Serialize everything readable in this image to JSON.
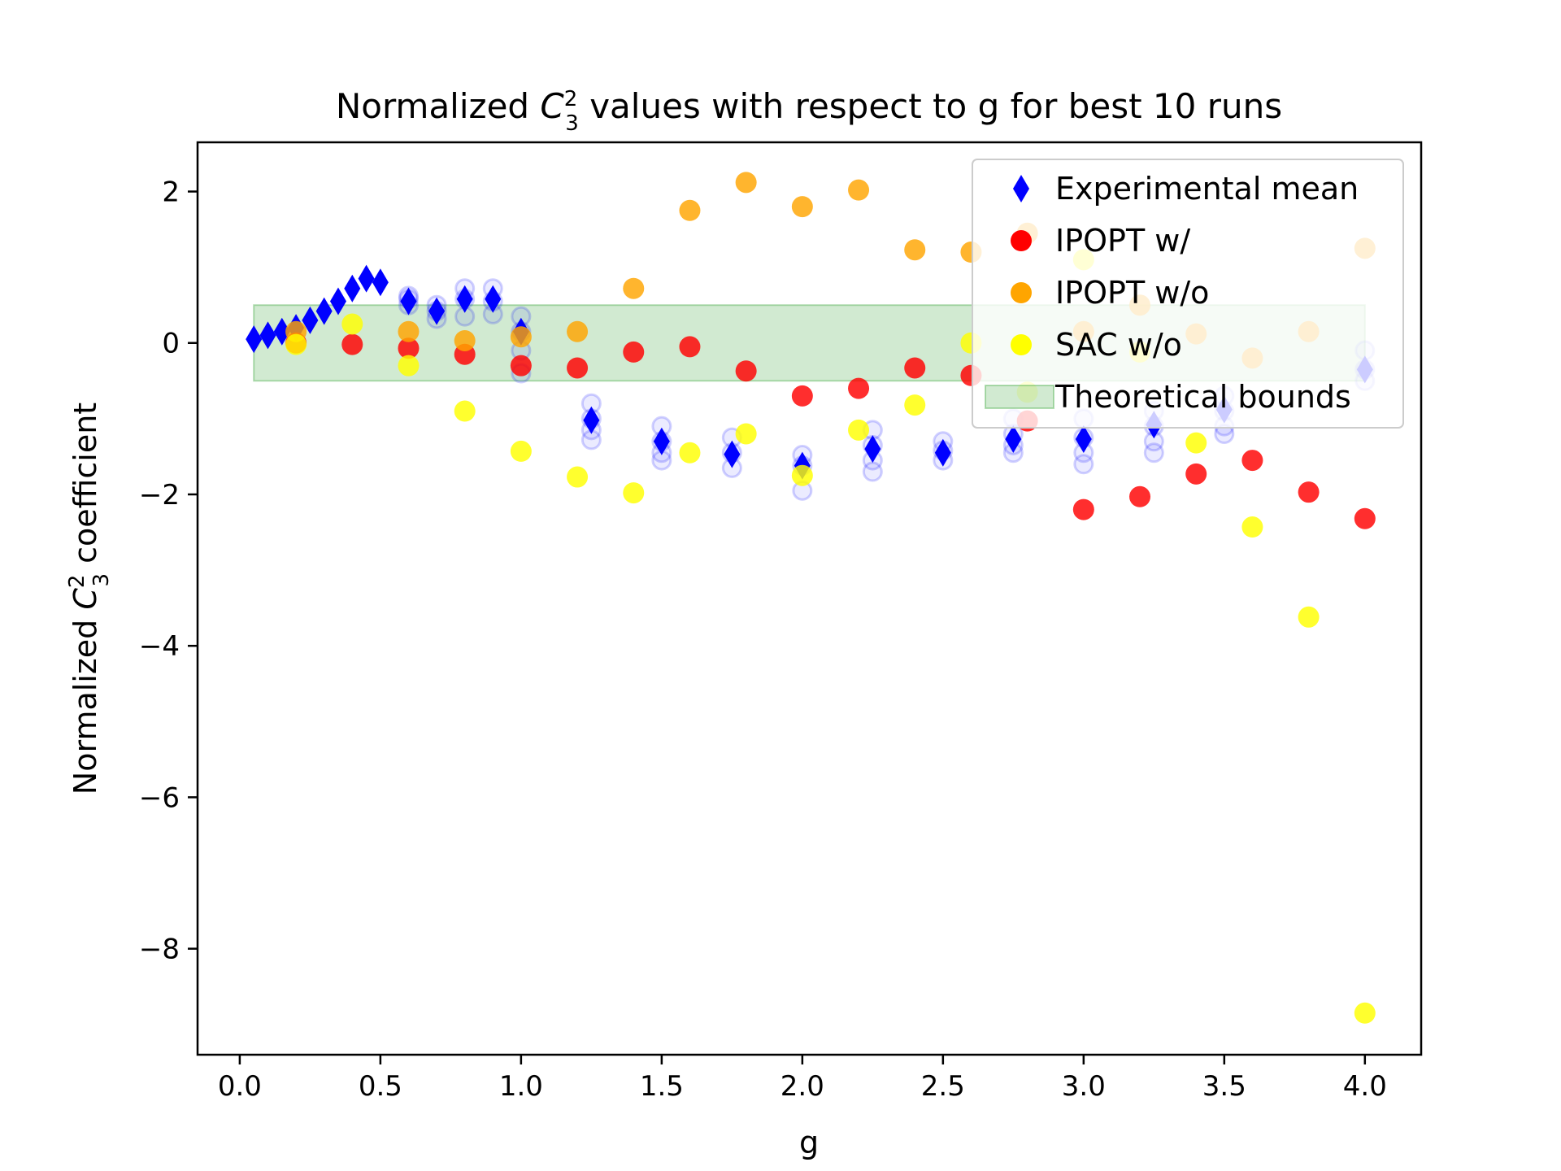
{
  "chart_data": {
    "type": "scatter",
    "title": {
      "prefix": "Normalized ",
      "var": "C",
      "sup": "2",
      "sub": "3",
      "suffix": " values with respect to g for best 10 runs"
    },
    "xlabel": "g",
    "ylabel": {
      "prefix": "Normalized ",
      "var": "C",
      "sup": "2",
      "sub": "3",
      "suffix": " coefficient"
    },
    "xlim": [
      -0.15,
      4.2
    ],
    "ylim": [
      -9.4,
      2.65
    ],
    "x_ticks": [
      0.0,
      0.5,
      1.0,
      1.5,
      2.0,
      2.5,
      3.0,
      3.5,
      4.0
    ],
    "x_tick_labels": [
      "0.0",
      "0.5",
      "1.0",
      "1.5",
      "2.0",
      "2.5",
      "3.0",
      "3.5",
      "4.0"
    ],
    "y_ticks": [
      2,
      0,
      -2,
      -4,
      -6,
      -8
    ],
    "y_tick_labels": [
      "2",
      "0",
      "−2",
      "−4",
      "−6",
      "−8"
    ],
    "grid": false,
    "legend_position": "top-right",
    "theoretical_bounds": {
      "name": "Theoretical bounds",
      "x_range": [
        0.05,
        4.0
      ],
      "y_range": [
        -0.5,
        0.5
      ],
      "color": "#2ca02c"
    },
    "series": [
      {
        "name": "Experimental mean",
        "marker": "diamond",
        "color": "#0000ff",
        "x": [
          0.05,
          0.1,
          0.15,
          0.2,
          0.25,
          0.3,
          0.35,
          0.4,
          0.45,
          0.5,
          0.6,
          0.7,
          0.8,
          0.9,
          1.0,
          1.25,
          1.5,
          1.75,
          2.0,
          2.25,
          2.5,
          2.75,
          3.0,
          3.25,
          3.5,
          4.0
        ],
        "y": [
          0.05,
          0.1,
          0.15,
          0.2,
          0.3,
          0.42,
          0.55,
          0.72,
          0.85,
          0.8,
          0.55,
          0.42,
          0.58,
          0.58,
          0.15,
          -1.02,
          -1.3,
          -1.47,
          -1.62,
          -1.4,
          -1.45,
          -1.27,
          -1.27,
          -1.08,
          -0.88,
          -0.35
        ]
      },
      {
        "name": "IPOPT w/",
        "marker": "circle",
        "color": "#ff0000",
        "x": [
          0.2,
          0.4,
          0.6,
          0.8,
          1.0,
          1.2,
          1.4,
          1.6,
          1.8,
          2.0,
          2.2,
          2.4,
          2.6,
          2.8,
          3.0,
          3.2,
          3.4,
          3.6,
          3.8,
          4.0
        ],
        "y": [
          0.0,
          -0.02,
          -0.07,
          -0.15,
          -0.3,
          -0.33,
          -0.12,
          -0.05,
          -0.37,
          -0.7,
          -0.6,
          -0.33,
          -0.43,
          -1.03,
          -2.2,
          -2.03,
          -1.73,
          -1.55,
          -1.97,
          -2.32
        ]
      },
      {
        "name": "IPOPT w/o",
        "marker": "circle",
        "color": "#ffa500",
        "x": [
          0.2,
          0.6,
          0.8,
          1.0,
          1.2,
          1.4,
          1.6,
          1.8,
          2.0,
          2.2,
          2.4,
          2.6,
          2.8,
          3.0,
          3.2,
          3.4,
          3.6,
          3.8,
          4.0
        ],
        "y": [
          0.15,
          0.15,
          0.03,
          0.08,
          0.15,
          0.72,
          1.75,
          2.12,
          1.8,
          2.02,
          1.23,
          1.2,
          1.45,
          0.15,
          0.5,
          0.12,
          -0.2,
          0.15,
          1.25
        ]
      },
      {
        "name": "SAC w/o",
        "marker": "circle",
        "color": "#ffff00",
        "x": [
          0.2,
          0.4,
          0.6,
          0.8,
          1.0,
          1.2,
          1.4,
          1.6,
          1.8,
          2.0,
          2.2,
          2.4,
          2.6,
          2.8,
          3.0,
          3.2,
          3.4,
          3.6,
          3.8,
          4.0
        ],
        "y": [
          -0.02,
          0.25,
          -0.3,
          -0.9,
          -1.43,
          -1.77,
          -1.98,
          -1.45,
          -1.2,
          -1.75,
          -1.15,
          -0.82,
          0.0,
          -0.65,
          1.1,
          -0.12,
          -1.32,
          -2.43,
          -3.62,
          -8.85
        ]
      }
    ],
    "individual_runs": {
      "color": "#0000ff",
      "x": [
        0.6,
        0.7,
        0.8,
        0.9,
        1.0,
        1.25,
        1.5,
        1.75,
        2.0,
        2.25,
        2.5,
        2.75,
        3.0,
        3.25,
        3.5,
        4.0
      ],
      "y_values": [
        [
          0.5,
          0.58,
          0.62
        ],
        [
          0.32,
          0.42,
          0.5
        ],
        [
          0.35,
          0.58,
          0.72
        ],
        [
          0.38,
          0.55,
          0.72
        ],
        [
          -0.1,
          0.15,
          0.35,
          -0.4
        ],
        [
          -0.8,
          -1.0,
          -1.15,
          -1.28
        ],
        [
          -1.1,
          -1.3,
          -1.45,
          -1.55
        ],
        [
          -1.25,
          -1.45,
          -1.65
        ],
        [
          -1.48,
          -1.62,
          -1.95
        ],
        [
          -1.15,
          -1.35,
          -1.55,
          -1.7
        ],
        [
          -1.3,
          -1.42,
          -1.55
        ],
        [
          -1.0,
          -1.2,
          -1.35,
          -1.45
        ],
        [
          -1.0,
          -1.25,
          -1.45,
          -1.6
        ],
        [
          -0.9,
          -1.1,
          -1.3,
          -1.45
        ],
        [
          -0.7,
          -0.9,
          -1.1,
          -1.2
        ],
        [
          -0.1,
          -0.35,
          -0.5
        ]
      ]
    }
  }
}
